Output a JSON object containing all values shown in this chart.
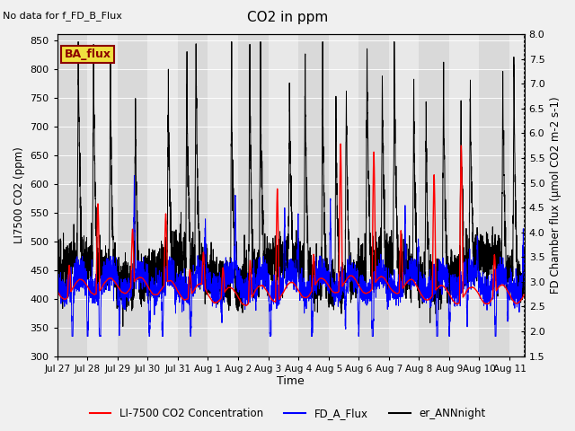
{
  "title": "CO2 in ppm",
  "no_data_text": "No data for f_FD_B_Flux",
  "xlabel": "Time",
  "ylabel_left": "LI7500 CO2 (ppm)",
  "ylabel_right": "FD Chamber flux (μmol CO2 m-2 s-1)",
  "ylim_left": [
    300,
    860
  ],
  "ylim_right": [
    1.5,
    8.0
  ],
  "yticks_left": [
    300,
    350,
    400,
    450,
    500,
    550,
    600,
    650,
    700,
    750,
    800,
    850
  ],
  "yticks_right": [
    1.5,
    2.0,
    2.5,
    3.0,
    3.5,
    4.0,
    4.5,
    5.0,
    5.5,
    6.0,
    6.5,
    7.0,
    7.5,
    8.0
  ],
  "xtick_labels": [
    "Jul 27",
    "Jul 28",
    "Jul 29",
    "Jul 30",
    "Jul 31",
    "Aug 1",
    "Aug 2",
    "Aug 3",
    "Aug 4",
    "Aug 5",
    "Aug 6",
    "Aug 7",
    "Aug 8",
    "Aug 9",
    "Aug 10",
    "Aug 11"
  ],
  "legend_entries": [
    "LI-7500 CO2 Concentration",
    "FD_A_Flux",
    "er_ANNnight"
  ],
  "legend_colors": [
    "red",
    "blue",
    "black"
  ],
  "ba_flux_label": "BA_flux",
  "background_color": "#f0f0f0",
  "plot_bg_color": "#e8e8e8",
  "shading_color": "#d8d8d8",
  "grid_color": "#ffffff",
  "n_points": 4320,
  "days": 15.5
}
